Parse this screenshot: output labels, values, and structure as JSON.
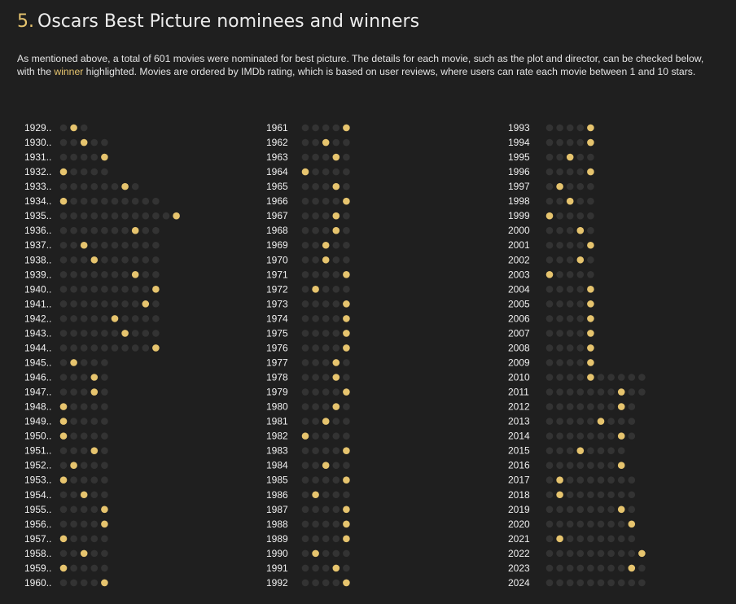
{
  "header": {
    "number": "5.",
    "title": "Oscars Best Picture nominees and winners"
  },
  "description": {
    "before": "As mentioned above, a total of 601 movies were nominated for best picture. The details for each movie, such as the plot and director, can be checked below, with the ",
    "highlight": "winner",
    "after": " highlighted. Movies are ordered by IMDb rating, which is based on user reviews, where users can rate each movie between 1 and 10 stars."
  },
  "colors": {
    "winner": "#e6c46e",
    "nominee": "#333333",
    "background": "#1f1f1f"
  },
  "chart_data": {
    "type": "dot-matrix",
    "title": "Oscars Best Picture nominees and winners",
    "total_nominated": 601,
    "ordering": "IMDb rating (descending)",
    "rows": [
      {
        "year": "1929..",
        "n": 3,
        "w": 2
      },
      {
        "year": "1930..",
        "n": 5,
        "w": 3
      },
      {
        "year": "1931..",
        "n": 5,
        "w": 5
      },
      {
        "year": "1932..",
        "n": 5,
        "w": 1
      },
      {
        "year": "1933..",
        "n": 8,
        "w": 7
      },
      {
        "year": "1934..",
        "n": 10,
        "w": 1
      },
      {
        "year": "1935..",
        "n": 12,
        "w": 12
      },
      {
        "year": "1936..",
        "n": 10,
        "w": 8
      },
      {
        "year": "1937..",
        "n": 10,
        "w": 3
      },
      {
        "year": "1938..",
        "n": 10,
        "w": 4
      },
      {
        "year": "1939..",
        "n": 10,
        "w": 8
      },
      {
        "year": "1940..",
        "n": 10,
        "w": 10
      },
      {
        "year": "1941..",
        "n": 10,
        "w": 9
      },
      {
        "year": "1942..",
        "n": 10,
        "w": 6
      },
      {
        "year": "1943..",
        "n": 10,
        "w": 7
      },
      {
        "year": "1944..",
        "n": 10,
        "w": 10
      },
      {
        "year": "1945..",
        "n": 5,
        "w": 2
      },
      {
        "year": "1946..",
        "n": 5,
        "w": 4
      },
      {
        "year": "1947..",
        "n": 5,
        "w": 4
      },
      {
        "year": "1948..",
        "n": 5,
        "w": 1
      },
      {
        "year": "1949..",
        "n": 5,
        "w": 1
      },
      {
        "year": "1950..",
        "n": 5,
        "w": 1
      },
      {
        "year": "1951..",
        "n": 5,
        "w": 4
      },
      {
        "year": "1952..",
        "n": 5,
        "w": 2
      },
      {
        "year": "1953..",
        "n": 5,
        "w": 1
      },
      {
        "year": "1954..",
        "n": 5,
        "w": 3
      },
      {
        "year": "1955..",
        "n": 5,
        "w": 5
      },
      {
        "year": "1956..",
        "n": 5,
        "w": 5
      },
      {
        "year": "1957..",
        "n": 5,
        "w": 1
      },
      {
        "year": "1958..",
        "n": 5,
        "w": 3
      },
      {
        "year": "1959..",
        "n": 5,
        "w": 1
      },
      {
        "year": "1960..",
        "n": 5,
        "w": 5
      },
      {
        "year": "1961",
        "n": 5,
        "w": 5
      },
      {
        "year": "1962",
        "n": 5,
        "w": 3
      },
      {
        "year": "1963",
        "n": 5,
        "w": 4
      },
      {
        "year": "1964",
        "n": 5,
        "w": 1
      },
      {
        "year": "1965",
        "n": 5,
        "w": 4
      },
      {
        "year": "1966",
        "n": 5,
        "w": 5
      },
      {
        "year": "1967",
        "n": 5,
        "w": 4
      },
      {
        "year": "1968",
        "n": 5,
        "w": 4
      },
      {
        "year": "1969",
        "n": 5,
        "w": 3
      },
      {
        "year": "1970",
        "n": 5,
        "w": 3
      },
      {
        "year": "1971",
        "n": 5,
        "w": 5
      },
      {
        "year": "1972",
        "n": 5,
        "w": 2
      },
      {
        "year": "1973",
        "n": 5,
        "w": 5
      },
      {
        "year": "1974",
        "n": 5,
        "w": 5
      },
      {
        "year": "1975",
        "n": 5,
        "w": 5
      },
      {
        "year": "1976",
        "n": 5,
        "w": 5
      },
      {
        "year": "1977",
        "n": 5,
        "w": 4
      },
      {
        "year": "1978",
        "n": 5,
        "w": 4
      },
      {
        "year": "1979",
        "n": 5,
        "w": 5
      },
      {
        "year": "1980",
        "n": 5,
        "w": 4
      },
      {
        "year": "1981",
        "n": 5,
        "w": 3
      },
      {
        "year": "1982",
        "n": 5,
        "w": 1
      },
      {
        "year": "1983",
        "n": 5,
        "w": 5
      },
      {
        "year": "1984",
        "n": 5,
        "w": 3
      },
      {
        "year": "1985",
        "n": 5,
        "w": 5
      },
      {
        "year": "1986",
        "n": 5,
        "w": 2
      },
      {
        "year": "1987",
        "n": 5,
        "w": 5
      },
      {
        "year": "1988",
        "n": 5,
        "w": 5
      },
      {
        "year": "1989",
        "n": 5,
        "w": 5
      },
      {
        "year": "1990",
        "n": 5,
        "w": 2
      },
      {
        "year": "1991",
        "n": 5,
        "w": 4
      },
      {
        "year": "1992",
        "n": 5,
        "w": 5
      },
      {
        "year": "1993",
        "n": 5,
        "w": 5
      },
      {
        "year": "1994",
        "n": 5,
        "w": 5
      },
      {
        "year": "1995",
        "n": 5,
        "w": 3
      },
      {
        "year": "1996",
        "n": 5,
        "w": 5
      },
      {
        "year": "1997",
        "n": 5,
        "w": 2
      },
      {
        "year": "1998",
        "n": 5,
        "w": 3
      },
      {
        "year": "1999",
        "n": 5,
        "w": 1
      },
      {
        "year": "2000",
        "n": 5,
        "w": 4
      },
      {
        "year": "2001",
        "n": 5,
        "w": 5
      },
      {
        "year": "2002",
        "n": 5,
        "w": 4
      },
      {
        "year": "2003",
        "n": 5,
        "w": 1
      },
      {
        "year": "2004",
        "n": 5,
        "w": 5
      },
      {
        "year": "2005",
        "n": 5,
        "w": 5
      },
      {
        "year": "2006",
        "n": 5,
        "w": 5
      },
      {
        "year": "2007",
        "n": 5,
        "w": 5
      },
      {
        "year": "2008",
        "n": 5,
        "w": 5
      },
      {
        "year": "2009",
        "n": 5,
        "w": 5
      },
      {
        "year": "2010",
        "n": 10,
        "w": 5
      },
      {
        "year": "2011",
        "n": 10,
        "w": 8
      },
      {
        "year": "2012",
        "n": 9,
        "w": 8
      },
      {
        "year": "2013",
        "n": 9,
        "w": 6
      },
      {
        "year": "2014",
        "n": 9,
        "w": 8
      },
      {
        "year": "2015",
        "n": 8,
        "w": 4
      },
      {
        "year": "2016",
        "n": 8,
        "w": 8
      },
      {
        "year": "2017",
        "n": 9,
        "w": 2
      },
      {
        "year": "2018",
        "n": 9,
        "w": 2
      },
      {
        "year": "2019",
        "n": 9,
        "w": 8
      },
      {
        "year": "2020",
        "n": 9,
        "w": 9
      },
      {
        "year": "2021",
        "n": 9,
        "w": 2
      },
      {
        "year": "2022",
        "n": 10,
        "w": 10
      },
      {
        "year": "2023",
        "n": 10,
        "w": 9
      },
      {
        "year": "2024",
        "n": 10,
        "w": 0
      }
    ]
  }
}
